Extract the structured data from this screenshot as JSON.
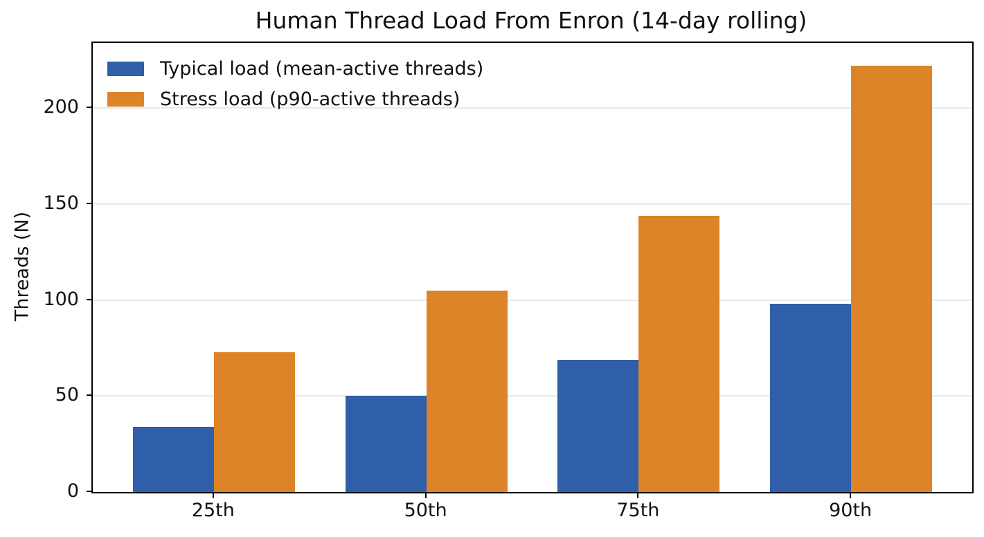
{
  "title": "Human Thread Load From Enron (14-day rolling)",
  "chart_data": {
    "type": "bar",
    "title": "Human Thread Load From Enron (14-day rolling)",
    "categories": [
      "25th",
      "50th",
      "75th",
      "90th"
    ],
    "series": [
      {
        "name": "Typical load (mean-active threads)",
        "color": "#2e5fa8",
        "values": [
          34,
          50,
          69,
          98
        ]
      },
      {
        "name": "Stress load (p90-active threads)",
        "color": "#dd8428",
        "values": [
          73,
          105,
          144,
          222
        ]
      }
    ],
    "xlabel": "",
    "ylabel": "Threads (N)",
    "yticks": [
      0,
      50,
      100,
      150,
      200
    ],
    "ylim": [
      0,
      234
    ],
    "grid": "horizontal-only",
    "grid_color": "#e8e8e8",
    "legend_position": "upper-left",
    "legend_frame": false,
    "bar_edge": "none"
  }
}
